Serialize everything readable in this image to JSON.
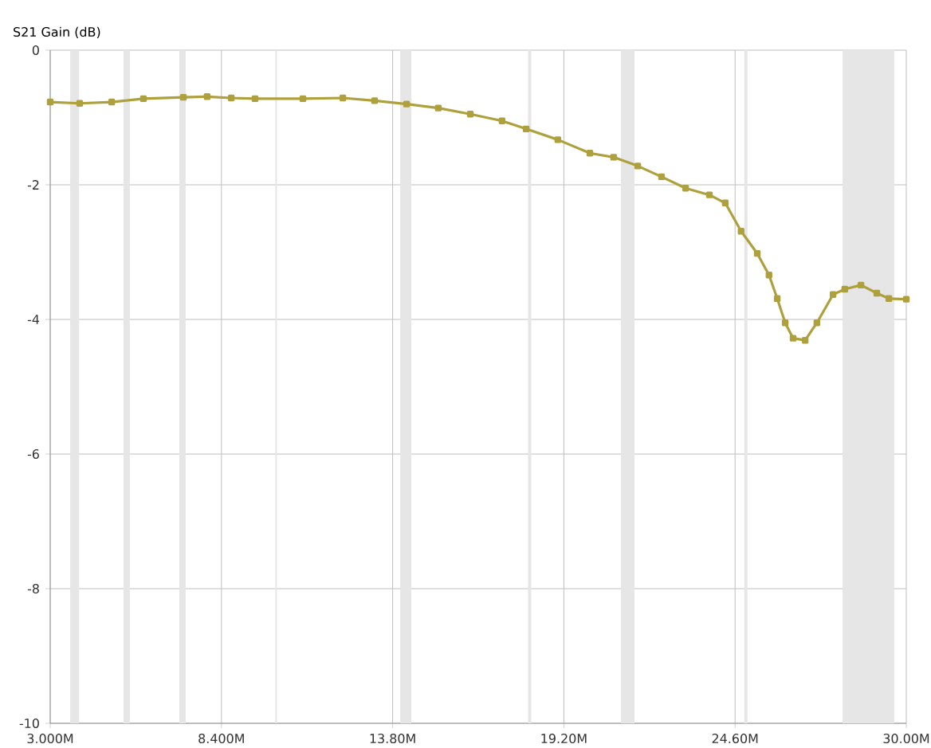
{
  "chart_data": {
    "type": "line",
    "ylabel": "S21 Gain (dB)",
    "x": [
      3.0,
      3.93,
      4.94,
      5.94,
      7.2,
      7.95,
      8.71,
      9.46,
      10.97,
      12.23,
      13.23,
      14.24,
      15.24,
      16.25,
      17.25,
      18.01,
      19.01,
      20.02,
      20.77,
      21.53,
      22.28,
      23.04,
      23.79,
      24.29,
      24.79,
      25.3,
      25.67,
      25.93,
      26.18,
      26.43,
      26.81,
      27.18,
      27.69,
      28.06,
      28.57,
      29.07,
      29.45,
      30.0
    ],
    "series": [
      {
        "color": "#aea03c",
        "values": [
          -0.77,
          -0.79,
          -0.77,
          -0.72,
          -0.7,
          -0.69,
          -0.71,
          -0.72,
          -0.72,
          -0.71,
          -0.75,
          -0.8,
          -0.86,
          -0.95,
          -1.05,
          -1.17,
          -1.33,
          -1.53,
          -1.59,
          -1.72,
          -1.88,
          -2.05,
          -2.15,
          -2.27,
          -2.69,
          -3.02,
          -3.34,
          -3.69,
          -4.05,
          -4.28,
          -4.31,
          -4.05,
          -3.63,
          -3.55,
          -3.49,
          -3.61,
          -3.69,
          -3.7
        ]
      }
    ],
    "xlim": [
      3.0,
      30.0
    ],
    "ylim": [
      -10,
      0
    ],
    "xticks": [
      {
        "value": 3.0,
        "label": "3.000M"
      },
      {
        "value": 8.4,
        "label": "8.400M"
      },
      {
        "value": 13.8,
        "label": "13.80M"
      },
      {
        "value": 19.2,
        "label": "19.20M"
      },
      {
        "value": 24.6,
        "label": "24.60M"
      },
      {
        "value": 30.0,
        "label": "30.00M"
      }
    ],
    "yticks": [
      -10,
      -8,
      -6,
      -4,
      -2,
      0
    ],
    "bands": [
      {
        "axis": "x",
        "from": 3.63,
        "to": 3.91,
        "color": "#e6e6e6"
      },
      {
        "axis": "x",
        "from": 5.31,
        "to": 5.51,
        "color": "#e6e6e6"
      },
      {
        "axis": "x",
        "from": 7.07,
        "to": 7.27,
        "color": "#e6e6e6"
      },
      {
        "axis": "x",
        "from": 10.1,
        "to": 10.15,
        "color": "#e6e6e6"
      },
      {
        "axis": "x",
        "from": 14.04,
        "to": 14.39,
        "color": "#e6e6e6"
      },
      {
        "axis": "x",
        "from": 18.07,
        "to": 18.17,
        "color": "#e6e6e6"
      },
      {
        "axis": "x",
        "from": 21.0,
        "to": 21.43,
        "color": "#e6e6e6"
      },
      {
        "axis": "x",
        "from": 24.89,
        "to": 24.99,
        "color": "#e6e6e6"
      },
      {
        "axis": "x",
        "from": 27.99,
        "to": 29.62,
        "color": "#e6e6e6"
      }
    ],
    "grid": true,
    "marker": "square",
    "line_style": "solid"
  }
}
